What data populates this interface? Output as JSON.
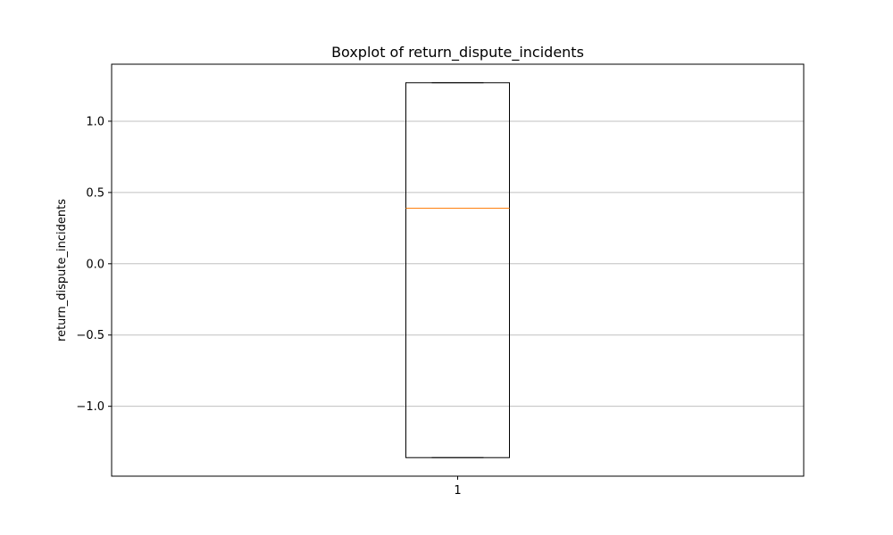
{
  "chart_data": {
    "type": "box",
    "title": "Boxplot of return_dispute_incidents",
    "xlabel": "",
    "ylabel": "return_dispute_incidents",
    "categories": [
      "1"
    ],
    "boxes": [
      {
        "category": "1",
        "whisker_low": -1.36,
        "q1": -1.36,
        "median": 0.39,
        "q3": 1.27,
        "whisker_high": 1.27
      }
    ],
    "ylim": [
      -1.49,
      1.4
    ],
    "yticks": [
      -1.0,
      -0.5,
      0.0,
      0.5,
      1.0
    ],
    "ytick_labels": [
      "−1.0",
      "−0.5",
      "0.0",
      "0.5",
      "1.0"
    ],
    "grid": "y",
    "colors": {
      "box": "#000000",
      "median": "#ff7f0e",
      "grid": "#c0c0c0"
    }
  }
}
